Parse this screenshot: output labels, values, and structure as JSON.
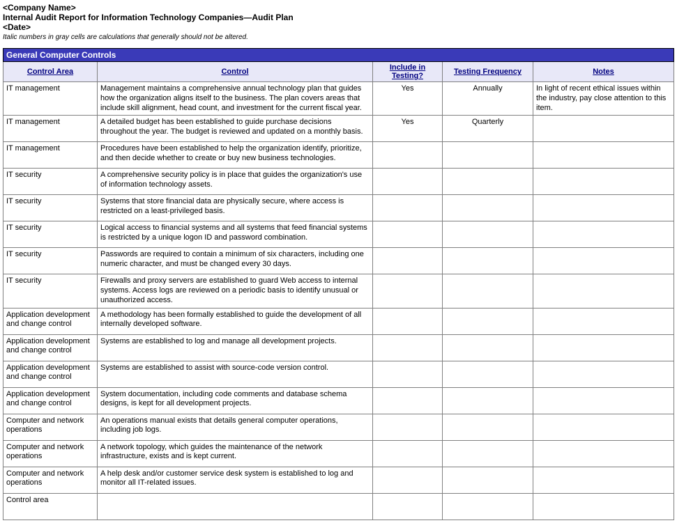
{
  "header": {
    "company": "<Company Name>",
    "title": "Internal Audit Report for Information Technology Companies—Audit Plan",
    "date": "<Date>",
    "note": "Italic numbers in gray cells are calculations that generally should not be altered."
  },
  "colors": {
    "section_bg": "#3a3ab8",
    "section_fg": "#ffffff",
    "head_bg": "#e8e8f8",
    "head_fg": "#000080",
    "border": "#808080"
  },
  "table": {
    "section_title": "General Computer Controls",
    "columns": [
      "Control Area",
      "Control",
      "Include in Testing?",
      "Testing Frequency",
      "Notes"
    ],
    "rows": [
      {
        "area": "IT management",
        "control": "Management maintains a comprehensive annual technology plan that guides how the organization aligns itself to the business. The plan covers areas that include skill alignment, head count, and investment for the current fiscal year.",
        "include": "Yes",
        "freq": "Annually",
        "notes": "In light of recent ethical issues within the industry, pay close attention to this item."
      },
      {
        "area": "IT management",
        "control": "A detailed budget has been established to guide purchase decisions throughout the year. The budget is reviewed and updated on a monthly basis.",
        "include": "Yes",
        "freq": "Quarterly",
        "notes": ""
      },
      {
        "area": "IT management",
        "control": "Procedures have been established to help the organization identify, prioritize, and then decide whether to create or buy new business technologies.",
        "include": "",
        "freq": "",
        "notes": ""
      },
      {
        "area": "IT security",
        "control": "A comprehensive security policy is in place that guides the organization's use of information technology assets.",
        "include": "",
        "freq": "",
        "notes": ""
      },
      {
        "area": "IT security",
        "control": "Systems that store financial data are physically secure, where access is restricted on a least-privileged basis.",
        "include": "",
        "freq": "",
        "notes": ""
      },
      {
        "area": "IT security",
        "control": "Logical access to financial systems and all systems that feed financial systems is restricted by a unique logon ID and password combination.",
        "include": "",
        "freq": "",
        "notes": ""
      },
      {
        "area": "IT security",
        "control": "Passwords are required to contain a minimum of six characters, including one numeric character, and must be changed every 30 days.",
        "include": "",
        "freq": "",
        "notes": ""
      },
      {
        "area": "IT security",
        "control": "Firewalls and proxy servers are established to guard Web access to internal systems. Access logs are reviewed on a periodic basis to identify unusual or unauthorized access.",
        "include": "",
        "freq": "",
        "notes": ""
      },
      {
        "area": "Application development and change control",
        "control": "A methodology has been formally established to guide the development of all internally developed software.",
        "include": "",
        "freq": "",
        "notes": ""
      },
      {
        "area": "Application development and change control",
        "control": "Systems are established to log and manage all development projects.",
        "include": "",
        "freq": "",
        "notes": ""
      },
      {
        "area": "Application development and change control",
        "control": "Systems are established to assist with source-code version control.",
        "include": "",
        "freq": "",
        "notes": ""
      },
      {
        "area": "Application development and change control",
        "control": "System documentation, including code comments and database schema designs, is kept for all development projects.",
        "include": "",
        "freq": "",
        "notes": ""
      },
      {
        "area": "Computer and network operations",
        "control": "An operations manual exists that details general computer operations, including job logs.",
        "include": "",
        "freq": "",
        "notes": ""
      },
      {
        "area": "Computer and network operations",
        "control": "A network topology, which guides the maintenance of the network infrastructure, exists and is kept current.",
        "include": "",
        "freq": "",
        "notes": ""
      },
      {
        "area": "Computer and network operations",
        "control": "A help desk and/or customer service desk system is established to log and monitor all IT-related issues.",
        "include": "",
        "freq": "",
        "notes": ""
      },
      {
        "area": "Control area",
        "control": "",
        "include": "",
        "freq": "",
        "notes": ""
      }
    ]
  }
}
